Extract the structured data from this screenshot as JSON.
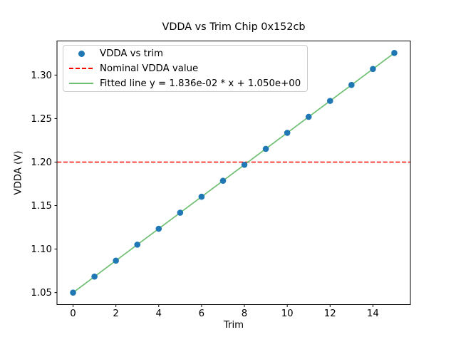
{
  "figure": {
    "title": "VDDA vs Trim Chip 0x152cb",
    "xlabel": "Trim",
    "ylabel": "VDDA (V)",
    "background_color": "#ffffff",
    "axes_color": "#000000"
  },
  "legend": {
    "position": "upper left",
    "border_color": "#cccccc",
    "items": [
      {
        "label": "VDDA vs trim",
        "marker": "dot",
        "color": "#1f77b4"
      },
      {
        "label": "Nominal VDDA value",
        "marker": "dashed-line",
        "color": "#ff0000"
      },
      {
        "label": "Fitted line y = 1.836e-02 * x + 1.050e+00",
        "marker": "solid-line",
        "color": "#6fbf73"
      }
    ]
  },
  "chart_data": {
    "type": "scatter",
    "title": "VDDA vs Trim Chip 0x152cb",
    "xlabel": "Trim",
    "ylabel": "VDDA (V)",
    "xlim": [
      -0.75,
      15.75
    ],
    "ylim": [
      1.0362,
      1.3392
    ],
    "x_ticks": [
      0,
      2,
      4,
      6,
      8,
      10,
      12,
      14
    ],
    "x_tick_labels": [
      "0",
      "2",
      "4",
      "6",
      "8",
      "10",
      "12",
      "14"
    ],
    "y_ticks": [
      1.05,
      1.1,
      1.15,
      1.2,
      1.25,
      1.3
    ],
    "y_tick_labels": [
      "1.05",
      "1.10",
      "1.15",
      "1.20",
      "1.25",
      "1.30"
    ],
    "grid": false,
    "legend_position": "upper left",
    "series": [
      {
        "name": "VDDA vs trim",
        "type": "scatter",
        "color": "#1f77b4",
        "x": [
          0,
          1,
          2,
          3,
          4,
          5,
          6,
          7,
          8,
          9,
          10,
          11,
          12,
          13,
          14,
          15
        ],
        "y": [
          1.05,
          1.0684,
          1.0867,
          1.1051,
          1.1234,
          1.1418,
          1.1602,
          1.1785,
          1.1969,
          1.2152,
          1.2336,
          1.252,
          1.2703,
          1.2887,
          1.307,
          1.3254
        ]
      },
      {
        "name": "Nominal VDDA value",
        "type": "hline",
        "color": "#ff0000",
        "linestyle": "dashed",
        "y": 1.2
      },
      {
        "name": "Fitted line y = 1.836e-02 * x + 1.050e+00",
        "type": "line",
        "color": "#6fbf73",
        "slope": 0.01836,
        "intercept": 1.05,
        "x_start": 0,
        "x_end": 15
      }
    ]
  }
}
